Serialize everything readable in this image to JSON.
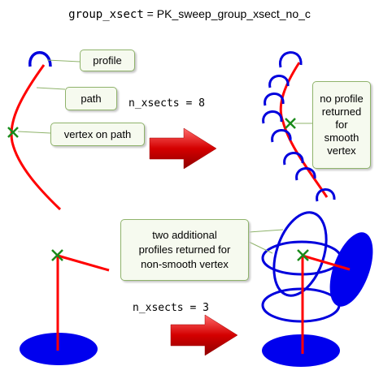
{
  "title": {
    "code_part": "group_xsect",
    "equals": " = ",
    "func_part": "PK_sweep_group_xsect_no_c"
  },
  "labels": {
    "profile": "profile",
    "path": "path",
    "vertex_on_path": "vertex on path",
    "no_profile": "no profile\nreturned\nfor\nsmooth\nvertex",
    "two_additional": "two additional\nprofiles returned for\nnon-smooth vertex",
    "n_xsects_top": "n_xsects = 8",
    "n_xsects_bottom": "n_xsects = 3"
  },
  "colors": {
    "path": "#ff0000",
    "profile": "#0000dd",
    "vertex_marker": "#1a8a1a",
    "arrow": "#cc0000",
    "callout_border": "#8fb36b",
    "callout_fill": "#f6faef"
  }
}
